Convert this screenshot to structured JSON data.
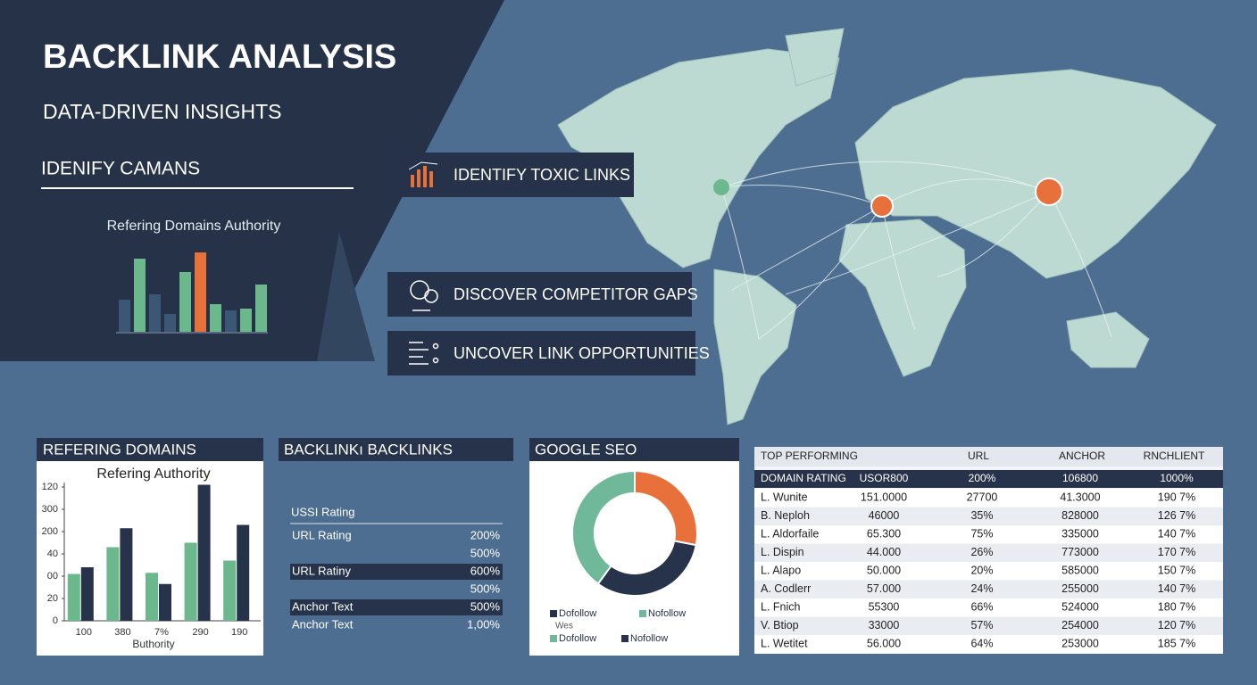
{
  "header": {
    "title": "BACKLINK ANALYSIS",
    "subtitle": "DATA-DRIVEN INSIGHTS",
    "section": "IDENIFY CAMANS"
  },
  "mini_chart": {
    "type": "bar",
    "title": "Refering Domains Authority",
    "values": [
      36,
      82,
      42,
      20,
      67,
      89,
      31,
      24,
      26,
      53
    ],
    "colors": [
      "#3c5676",
      "#6bb88c",
      "#3c5676",
      "#3c5676",
      "#6bb88c",
      "#e8703a",
      "#6bb88c",
      "#3c5676",
      "#6bb88c",
      "#6bb88c"
    ],
    "ylim": [
      0,
      100
    ]
  },
  "features": [
    "IDENTIFY TOXIC LINKS",
    "DISCOVER COMPETITOR GAPS",
    "UNCOVER LINK OPPORTUNITIES"
  ],
  "panel_chart": {
    "type": "bar",
    "header": "REFERING DOMAINS",
    "title": "Refering Authority",
    "categories": [
      "100",
      "380",
      "7%",
      "290",
      "190"
    ],
    "x_label": "Buthority",
    "series": [
      {
        "color": "#6bb88c",
        "values": [
          42,
          66,
          43,
          70,
          54
        ]
      },
      {
        "color": "#26334a",
        "values": [
          48,
          83,
          33,
          122,
          86
        ]
      }
    ],
    "ylim": [
      0,
      124
    ],
    "yticks": [
      0,
      20,
      {
        "value": 40,
        "label": "00"
      },
      {
        "value": 60,
        "label": "40"
      },
      {
        "value": 80,
        "label": "200"
      },
      {
        "value": 100,
        "label": "300"
      },
      120
    ]
  },
  "backlinks": {
    "header": "BACKLINKı BACKLINKS",
    "column": "USSI Rating",
    "rows": [
      {
        "label": "URL Rating",
        "value": "200%"
      },
      {
        "value": "500%"
      },
      {
        "label": "URL Ratiny",
        "value": "600%",
        "highlight": true
      },
      {
        "value": "500%"
      },
      {
        "label": "Anchor Text",
        "value": "500%",
        "highlight": true
      },
      {
        "label": "Anchor Text",
        "value": "1,00%"
      }
    ]
  },
  "donut": {
    "type": "pie",
    "header": "GOOGLE SEO",
    "values": [
      28,
      32,
      40
    ],
    "colors": [
      "#e8703a",
      "#26334a",
      "#6fb99a"
    ],
    "legend": [
      {
        "label": "Dofollow",
        "color": "#26334a"
      },
      {
        "label": "Nofollow",
        "color": "#6fb99a"
      },
      {
        "label": "Dofollow",
        "color": "#6fb99a"
      },
      {
        "label": "Nofollow",
        "color": "#26334a"
      }
    ],
    "note": "Wes"
  },
  "table": {
    "header": [
      "TOP PERFORMING",
      "URL",
      "ANCHOR",
      "RNCHLIENT"
    ],
    "subheader": [
      "DOMAIN RATING",
      "USOR800",
      "200%",
      "106800",
      "1000%"
    ],
    "rows": [
      [
        "L. Wunite",
        "151.0000",
        "27700",
        "41.3000",
        "190 7%"
      ],
      [
        "B. Neploh",
        "46000",
        "35%",
        "828000",
        "126 7%"
      ],
      [
        "L. Aldorfaile",
        "65.300",
        "75%",
        "335000",
        "140 7%"
      ],
      [
        "L. Dispin",
        "44.000",
        "26%",
        "773000",
        "170 7%"
      ],
      [
        "L. Alapo",
        "50.000",
        "20%",
        "585000",
        "150 7%"
      ],
      [
        "A. Codlerr",
        "57.000",
        "24%",
        "255000",
        "140 7%"
      ],
      [
        "L. Fnich",
        "55300",
        "66%",
        "524000",
        "180 7%"
      ],
      [
        "V. Btiop",
        "33000",
        "57%",
        "254000",
        "120 7%"
      ],
      [
        "L. Wetitet",
        "56.000",
        "64%",
        "253000",
        "185 7%"
      ]
    ]
  }
}
